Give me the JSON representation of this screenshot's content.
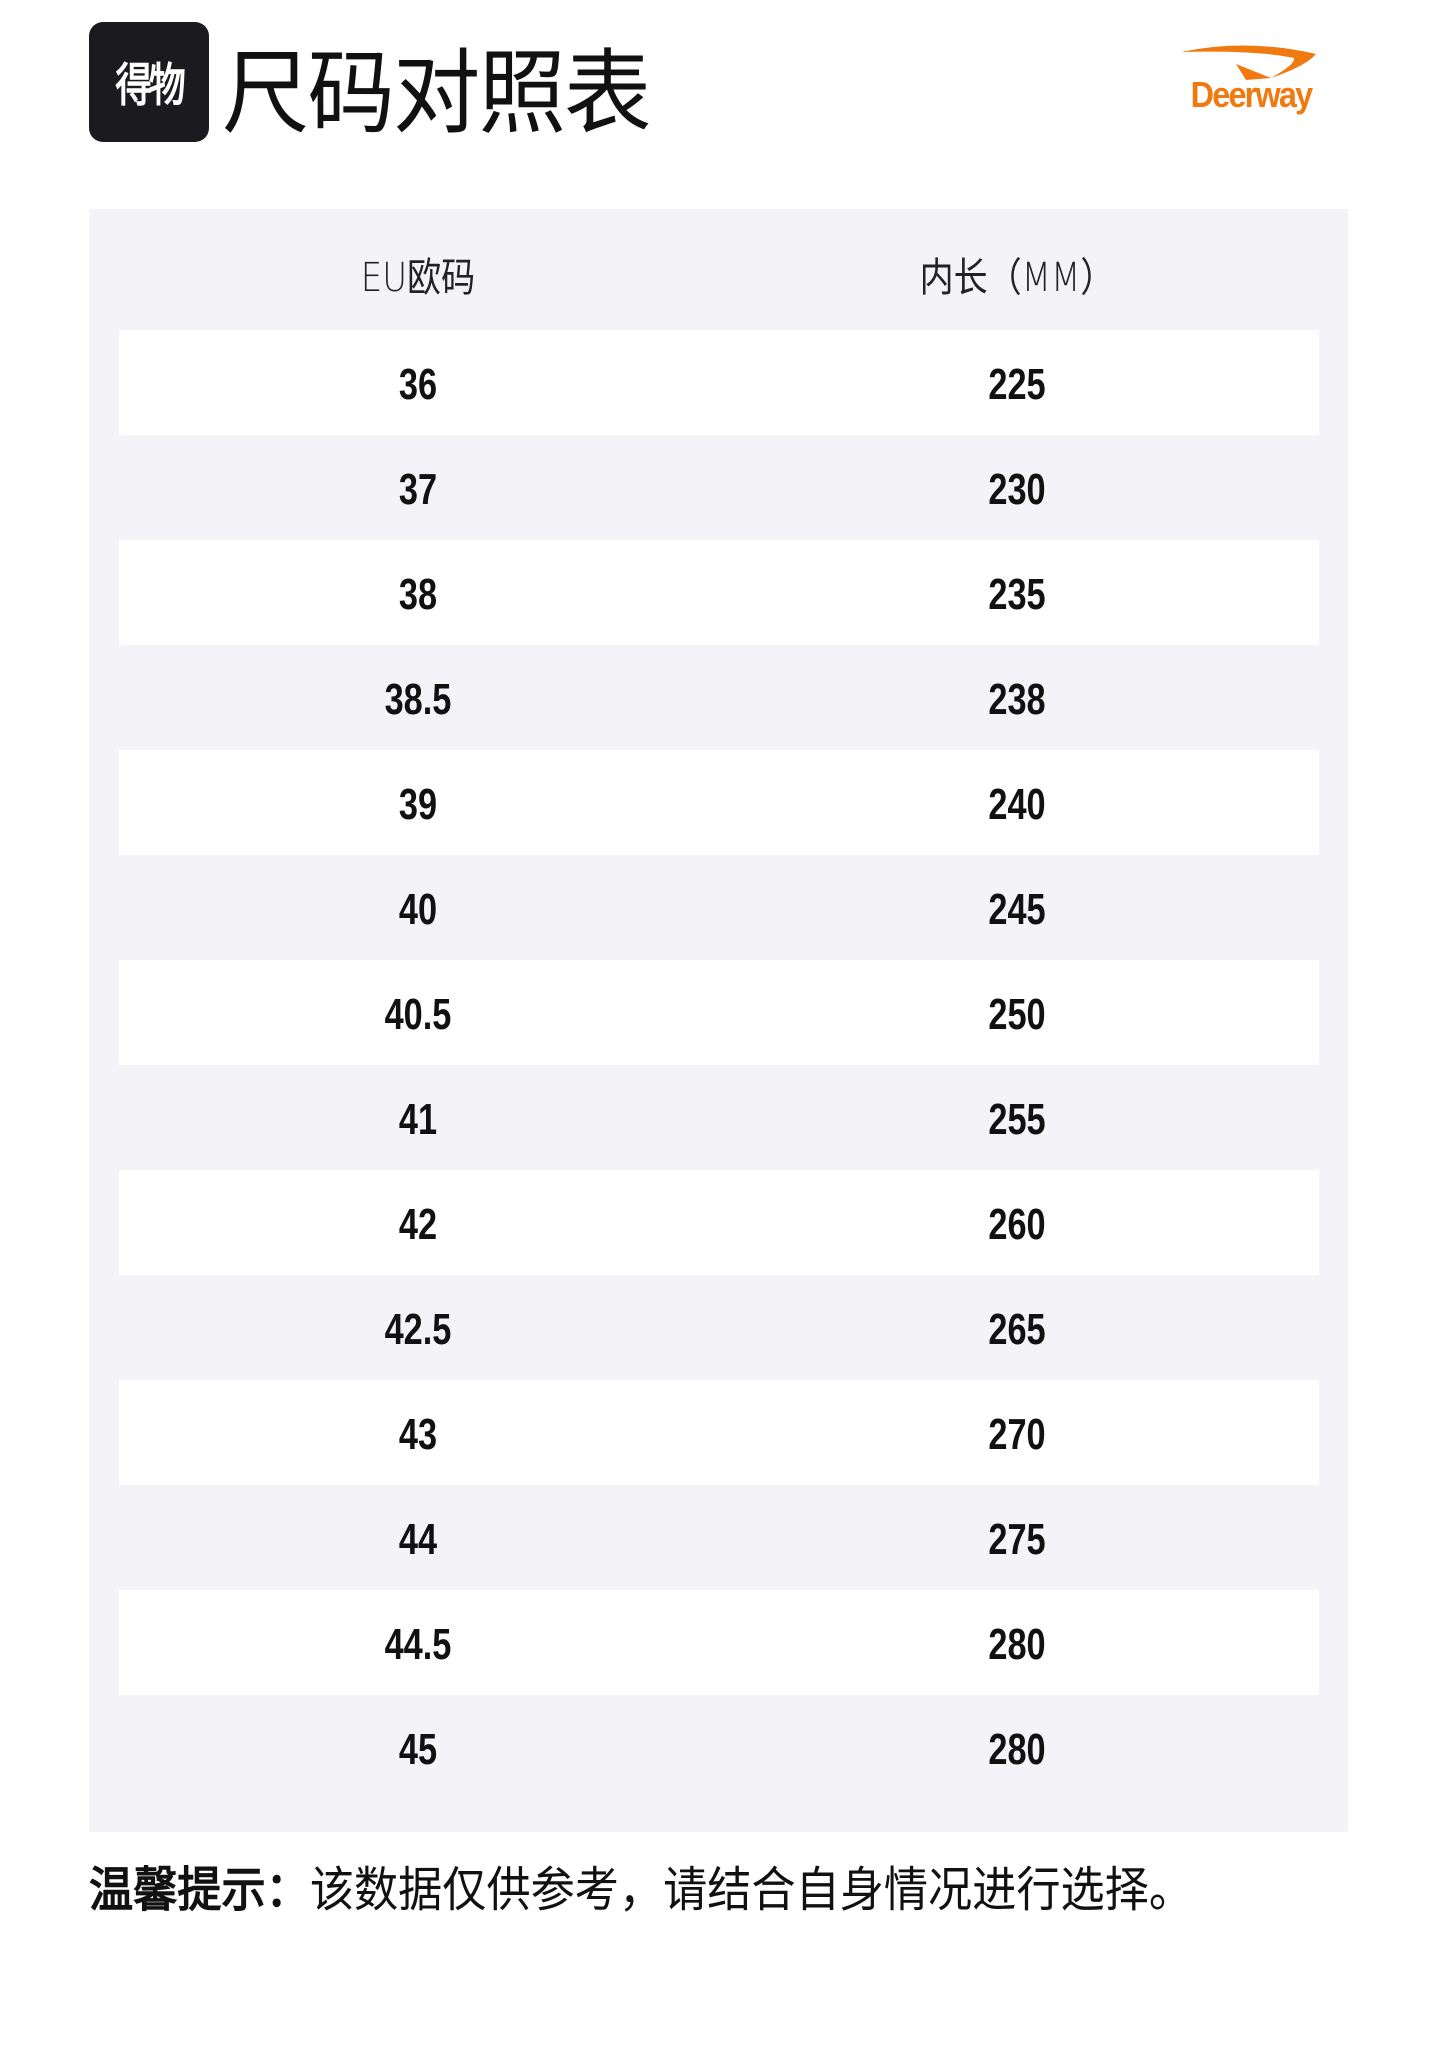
{
  "header": {
    "app_logo_text": "得物",
    "title": "尺码对照表",
    "brand_logo_text": "Deerway",
    "brand_color": "#f07a10"
  },
  "table": {
    "columns": [
      "EU欧码",
      "内长（MM）"
    ],
    "rows": [
      [
        "36",
        "225"
      ],
      [
        "37",
        "230"
      ],
      [
        "38",
        "235"
      ],
      [
        "38.5",
        "238"
      ],
      [
        "39",
        "240"
      ],
      [
        "40",
        "245"
      ],
      [
        "40.5",
        "250"
      ],
      [
        "41",
        "255"
      ],
      [
        "42",
        "260"
      ],
      [
        "42.5",
        "265"
      ],
      [
        "43",
        "270"
      ],
      [
        "44",
        "275"
      ],
      [
        "44.5",
        "280"
      ],
      [
        "45",
        "280"
      ]
    ]
  },
  "note": {
    "label": "温馨提示：",
    "text": "该数据仅供参考，请结合自身情况进行选择。"
  }
}
